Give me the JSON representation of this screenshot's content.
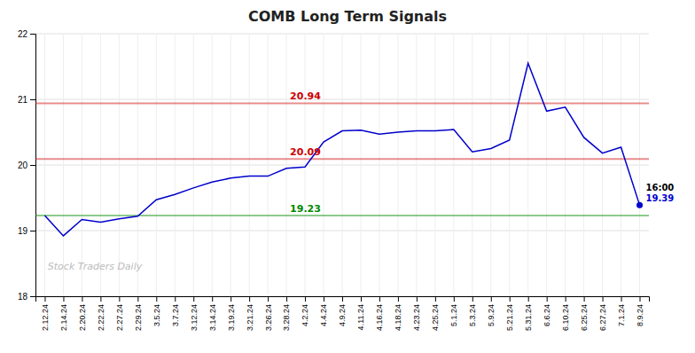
{
  "chart_data": {
    "type": "line",
    "title": "COMB Long Term Signals",
    "watermark": "Stock Traders Daily",
    "categories": [
      "2.12.24",
      "2.14.24",
      "2.20.24",
      "2.22.24",
      "2.27.24",
      "2.29.24",
      "3.5.24",
      "3.7.24",
      "3.12.24",
      "3.14.24",
      "3.19.24",
      "3.21.24",
      "3.26.24",
      "3.28.24",
      "4.2.24",
      "4.4.24",
      "4.9.24",
      "4.11.24",
      "4.16.24",
      "4.18.24",
      "4.23.24",
      "4.25.24",
      "5.1.24",
      "5.3.24",
      "5.9.24",
      "5.21.24",
      "5.31.24",
      "6.6.24",
      "6.10.24",
      "6.25.24",
      "6.27.24",
      "7.1.24",
      "8.9.24"
    ],
    "values": [
      19.23,
      18.92,
      19.17,
      19.13,
      19.18,
      19.22,
      19.47,
      19.55,
      19.65,
      19.74,
      19.8,
      19.83,
      19.83,
      19.95,
      19.97,
      20.35,
      20.52,
      20.53,
      20.47,
      20.5,
      20.52,
      20.52,
      20.54,
      20.2,
      20.25,
      20.38,
      21.55,
      20.82,
      20.88,
      20.42,
      20.18,
      20.27,
      19.39
    ],
    "color": "#0000cc",
    "hlines": [
      {
        "value": 20.94,
        "label": "20.94",
        "color": "#cc0000"
      },
      {
        "value": 20.09,
        "label": "20.09",
        "color": "#cc0000"
      },
      {
        "value": 19.23,
        "label": "19.23",
        "color": "#008800"
      }
    ],
    "last_label": "16:00",
    "last_value_label": "19.39",
    "ylim": [
      18,
      22
    ],
    "yticks": [
      18,
      19,
      20,
      21,
      22
    ],
    "grid": true
  }
}
